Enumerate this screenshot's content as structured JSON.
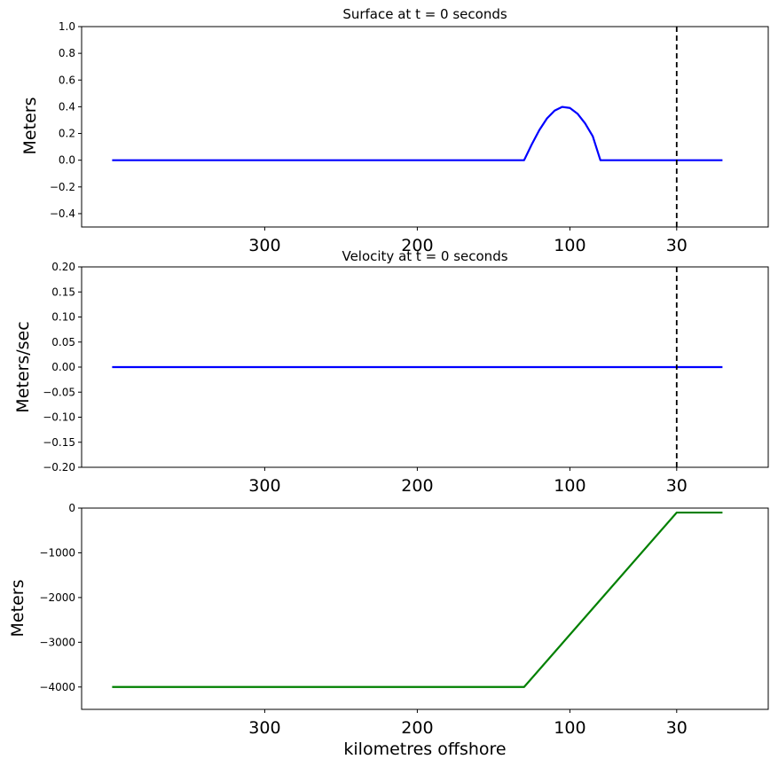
{
  "chart_data": [
    {
      "type": "line",
      "title": "Surface at t = 0 seconds",
      "xlabel": "",
      "ylabel": "Meters",
      "xlim": [
        420,
        -30
      ],
      "ylim": [
        -0.5,
        1.0
      ],
      "xticks": [
        300,
        200,
        100,
        30
      ],
      "yticks": [
        -0.4,
        -0.2,
        0.0,
        0.2,
        0.4,
        0.6,
        0.8,
        1.0
      ],
      "ytick_labels": [
        "−0.4",
        "−0.2",
        "0.0",
        "0.2",
        "0.4",
        "0.6",
        "0.8",
        "1.0"
      ],
      "vline": {
        "x": 30,
        "style": "dashed",
        "color": "#000000"
      },
      "series": [
        {
          "color": "#0000ff",
          "x": [
            400,
            130,
            125,
            120,
            115,
            110,
            105,
            100,
            95,
            90,
            85,
            80,
            0
          ],
          "y": [
            0,
            0,
            0.118,
            0.226,
            0.313,
            0.371,
            0.399,
            0.391,
            0.348,
            0.275,
            0.179,
            0.0,
            0
          ]
        }
      ]
    },
    {
      "type": "line",
      "title": "Velocity at t = 0 seconds",
      "xlabel": "",
      "ylabel": "Meters/sec",
      "xlim": [
        420,
        -30
      ],
      "ylim": [
        -0.2,
        0.2
      ],
      "xticks": [
        300,
        200,
        100,
        30
      ],
      "yticks": [
        -0.2,
        -0.15,
        -0.1,
        -0.05,
        0.0,
        0.05,
        0.1,
        0.15,
        0.2
      ],
      "ytick_labels": [
        "−0.20",
        "−0.15",
        "−0.10",
        "−0.05",
        "0.00",
        "0.05",
        "0.10",
        "0.15",
        "0.20"
      ],
      "vline": {
        "x": 30,
        "style": "dashed",
        "color": "#000000"
      },
      "series": [
        {
          "color": "#0000ff",
          "x": [
            400,
            0
          ],
          "y": [
            0,
            0
          ]
        }
      ]
    },
    {
      "type": "line",
      "title": "",
      "xlabel": "kilometres offshore",
      "ylabel": "Meters",
      "xlim": [
        420,
        -30
      ],
      "ylim": [
        -4500,
        0
      ],
      "xticks": [
        300,
        200,
        100,
        30
      ],
      "yticks": [
        -4000,
        -3000,
        -2000,
        -1000,
        0
      ],
      "ytick_labels": [
        "−4000",
        "−3000",
        "−2000",
        "−1000",
        "0"
      ],
      "series": [
        {
          "color": "#008000",
          "x": [
            400,
            130,
            30,
            0
          ],
          "y": [
            -4000,
            -4000,
            -100,
            -100
          ]
        }
      ]
    }
  ]
}
